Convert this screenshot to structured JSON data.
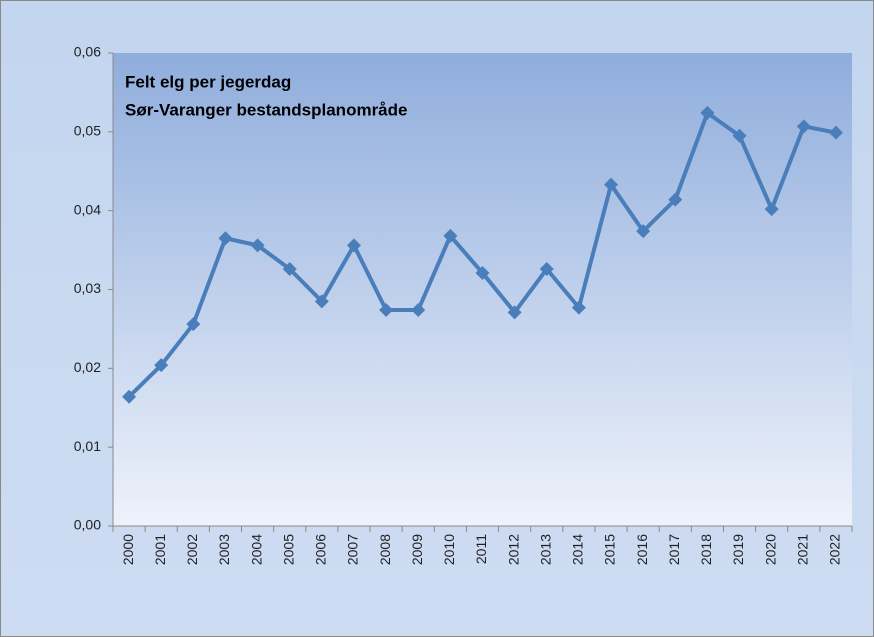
{
  "chart_data": {
    "type": "line",
    "title": "Felt elg per jegerdag",
    "subtitle": "Sør-Varanger bestandsplanområde",
    "categories": [
      "2000",
      "2001",
      "2002",
      "2003",
      "2004",
      "2005",
      "2006",
      "2007",
      "2008",
      "2009",
      "2010",
      "2011",
      "2012",
      "2013",
      "2014",
      "2015",
      "2016",
      "2017",
      "2018",
      "2019",
      "2020",
      "2021",
      "2022"
    ],
    "series": [
      {
        "color": "#4a7ebb",
        "values": [
          0.0164,
          0.0204,
          0.0256,
          0.0365,
          0.0356,
          0.0326,
          0.0285,
          0.0356,
          0.0274,
          0.0274,
          0.0368,
          0.0321,
          0.0271,
          0.0326,
          0.0277,
          0.0433,
          0.0374,
          0.0414,
          0.0524,
          0.0495,
          0.0402,
          0.0507,
          0.0499
        ]
      }
    ],
    "ylim": [
      0,
      0.06
    ],
    "yticks": [
      {
        "value": 0,
        "label": "0,00"
      },
      {
        "value": 0.01,
        "label": "0,01"
      },
      {
        "value": 0.02,
        "label": "0,02"
      },
      {
        "value": 0.03,
        "label": "0,03"
      },
      {
        "value": 0.04,
        "label": "0,04"
      },
      {
        "value": 0.05,
        "label": "0,05"
      },
      {
        "value": 0.06,
        "label": "0,06"
      }
    ],
    "grid": false
  }
}
